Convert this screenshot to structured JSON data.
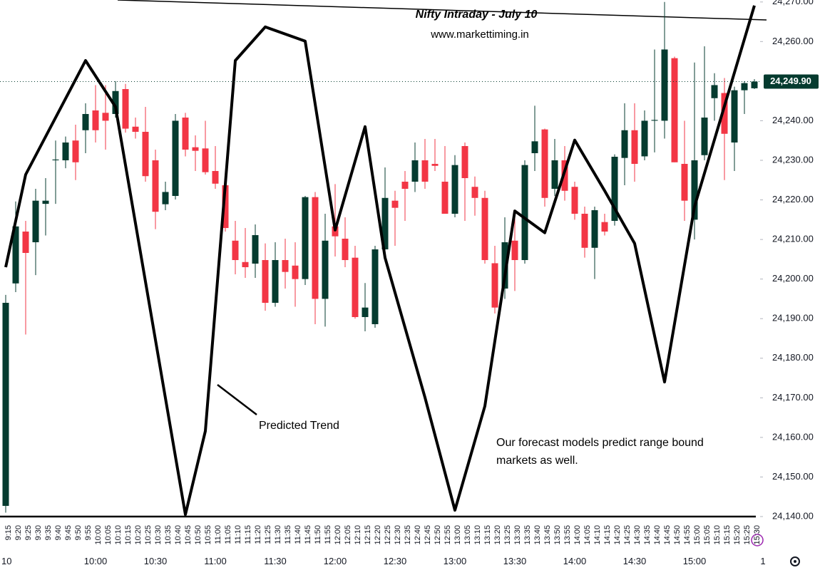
{
  "chart_data": {
    "type": "candlestick",
    "title": "Nifty Intraday - July 10",
    "subtitle": "www.markettiming.in",
    "categories": [
      "9:15",
      "9:20",
      "9:25",
      "9:30",
      "9:35",
      "9:40",
      "9:45",
      "9:50",
      "9:55",
      "10:00",
      "10:05",
      "10:10",
      "10:15",
      "10:20",
      "10:25",
      "10:30",
      "10:35",
      "10:40",
      "10:45",
      "10:50",
      "10:55",
      "11:00",
      "11:05",
      "11:10",
      "11:15",
      "11:20",
      "11:25",
      "11:30",
      "11:35",
      "11:40",
      "11:45",
      "11:50",
      "11:55",
      "12:00",
      "12:05",
      "12:10",
      "12:15",
      "12:20",
      "12:25",
      "12:30",
      "12:35",
      "12:40",
      "12:45",
      "12:50",
      "12:55",
      "13:00",
      "13:05",
      "13:10",
      "13:15",
      "13:20",
      "13:25",
      "13:30",
      "13:35",
      "13:40",
      "13:45",
      "13:50",
      "13:55",
      "14:00",
      "14:05",
      "14:10",
      "14:15",
      "14:20",
      "14:25",
      "14:30",
      "14:35",
      "14:40",
      "14:45",
      "14:50",
      "14:55",
      "15:00",
      "15:05",
      "15:10",
      "15:15",
      "15:20",
      "15:25",
      "15:30"
    ],
    "open": [
      24142.7,
      24198.9,
      24212,
      24209.3,
      24219,
      24230,
      24230,
      24235,
      24237.6,
      24242.6,
      24242,
      24241.7,
      24248,
      24238.5,
      24237.2,
      24230,
      24218.9,
      24221,
      24240.8,
      24233.3,
      24233,
      24227.3,
      24223.7,
      24209.7,
      24204.3,
      24203.9,
      24204.8,
      24194,
      24204.8,
      24203.4,
      24200,
      24220.7,
      24195,
      24213.3,
      24210.2,
      24205.4,
      24190.4,
      24188.6,
      24207.5,
      24219.8,
      24224.6,
      24224.6,
      24230,
      24229.1,
      24224.6,
      24216.5,
      24233.6,
      24223.3,
      24220.5,
      24204,
      24197.6,
      24209.7,
      24204.8,
      24231.8,
      24237.8,
      24222.8,
      24230,
      24223.3,
      24216.5,
      24207.9,
      24214.4,
      24214.7,
      24230.6,
      24237.6,
      24231,
      24240,
      24240,
      24255.8,
      24229.1,
      24215,
      24231.3,
      24245.7,
      24247,
      24234.5,
      24247.7,
      24248.2
    ],
    "high": [
      24196,
      24219.6,
      24214.7,
      24222.8,
      24225.5,
      24235,
      24236,
      24239,
      24244.4,
      24249,
      24249,
      24250,
      24249.3,
      24240.8,
      24243.5,
      24232.7,
      24224.6,
      24241.7,
      24242,
      24236.3,
      24240,
      24233.6,
      24226.4,
      24214.7,
      24212.9,
      24213.8,
      24209,
      24209.3,
      24210.2,
      24209.3,
      24221,
      24222,
      24216.5,
      24224,
      24215.6,
      24208.4,
      24199,
      24208.4,
      24228.2,
      24222.3,
      24227.3,
      24234.5,
      24235.4,
      24235.4,
      24233.6,
      24231.3,
      24234.5,
      24225.9,
      24222.3,
      24208.4,
      24215.6,
      24216.5,
      24230,
      24243.8,
      24238,
      24235.4,
      24233.6,
      24224.6,
      24218.3,
      24218.3,
      24216.5,
      24231.5,
      24244.4,
      24244.4,
      24242.6,
      24258,
      24270,
      24256.2,
      24240,
      24254.7,
      24258.8,
      24252,
      24250.8,
      24248.6,
      24250,
      24250.5
    ],
    "low": [
      24141,
      24196.7,
      24186,
      24201,
      24211,
      24219,
      24228,
      24225,
      24231.8,
      24234.5,
      24232.7,
      24240.8,
      24237,
      24235.5,
      24224.6,
      24212.6,
      24217.4,
      24220.1,
      24231,
      24227.3,
      24226.4,
      24222.8,
      24212,
      24201.2,
      24200.3,
      24200.3,
      24192,
      24193,
      24197.6,
      24193,
      24198.5,
      24188.6,
      24188,
      24205.7,
      24203,
      24190,
      24186.8,
      24187.7,
      24206.6,
      24208.4,
      24214.7,
      24222,
      24222.8,
      24227.3,
      24216.5,
      24215.6,
      24214.7,
      24216,
      24203.9,
      24191.3,
      24195,
      24197,
      24203.9,
      24227.3,
      24218.3,
      24221,
      24219.8,
      24215,
      24205.4,
      24200,
      24211,
      24213.5,
      24223.7,
      24224.6,
      24230,
      24232,
      24235.5,
      24229.5,
      24214.7,
      24210,
      24230,
      24240,
      24225,
      24227.3,
      24241.7,
      24248
    ],
    "close": [
      24194,
      24213.3,
      24206.6,
      24219.8,
      24219.8,
      24230.2,
      24234.5,
      24229.5,
      24241.7,
      24237.6,
      24240,
      24247.5,
      24238,
      24237.2,
      24226,
      24217,
      24222,
      24240,
      24232.7,
      24232.4,
      24227,
      24224.1,
      24212.9,
      24204.8,
      24203,
      24211.1,
      24194,
      24204.8,
      24201.8,
      24200,
      24220.7,
      24195,
      24209.7,
      24210.8,
      24204.8,
      24190.4,
      24192.8,
      24207.5,
      24220.5,
      24218,
      24222.8,
      24230,
      24224.6,
      24228.6,
      24216.5,
      24228.8,
      24225.5,
      24220.5,
      24204.8,
      24192.8,
      24209.3,
      24204.8,
      24228.8,
      24234.8,
      24220.5,
      24230,
      24222.3,
      24216.5,
      24207.9,
      24217.4,
      24212,
      24230.9,
      24237.6,
      24229.1,
      24240,
      24240.2,
      24258,
      24229.5,
      24219.8,
      24230,
      24240.8,
      24249,
      24236.7,
      24247.7,
      24249.5,
      24249.9
    ],
    "up_color": "#053b2f",
    "down_color": "#f23645",
    "ylim": [
      24140,
      24270.5
    ],
    "yticks": [
      {
        "value": 24140,
        "label": "24,140.00"
      },
      {
        "value": 24150,
        "label": "24,150.00"
      },
      {
        "value": 24160,
        "label": "24,160.00"
      },
      {
        "value": 24170,
        "label": "24,170.00"
      },
      {
        "value": 24180,
        "label": "24,180.00"
      },
      {
        "value": 24190,
        "label": "24,190.00"
      },
      {
        "value": 24200,
        "label": "24,200.00"
      },
      {
        "value": 24210,
        "label": "24,210.00"
      },
      {
        "value": 24220,
        "label": "24,220.00"
      },
      {
        "value": 24230,
        "label": "24,230.00"
      },
      {
        "value": 24240,
        "label": "24,240.00"
      },
      {
        "value": 24260,
        "label": "24,260.00"
      },
      {
        "value": 24270,
        "label": "24,270.00"
      }
    ],
    "last_price": {
      "value": 24249.9,
      "label": "24,249.90"
    },
    "time_axis_labels": [
      "10",
      "10:00",
      "10:30",
      "11:00",
      "11:30",
      "12:00",
      "12:30",
      "13:00",
      "13:30",
      "14:00",
      "14:30",
      "15:00",
      "1"
    ],
    "trend": {
      "name": "Predicted Trend",
      "color": "#000000",
      "x": [
        "9:15",
        "9:25",
        "9:55",
        "10:10",
        "10:45",
        "10:55",
        "11:10",
        "11:25",
        "11:45",
        "12:00",
        "12:15",
        "12:25",
        "12:45",
        "13:00",
        "13:15",
        "13:30",
        "13:45",
        "14:00",
        "14:15",
        "14:30",
        "14:45",
        "15:00",
        "15:30"
      ],
      "values": [
        24203,
        24226.4,
        24255.2,
        24243.5,
        24140.5,
        24161.6,
        24255.2,
        24263.7,
        24260.1,
        24212.4,
        24238.5,
        24205.4,
        24170.1,
        24141.6,
        24167.9,
        24217.2,
        24211.7,
        24235.1,
        24222.3,
        24209,
        24174,
        24218.3,
        24269.1
      ]
    },
    "note": [
      "Our forecast models predict range bound",
      "markets as well."
    ]
  }
}
